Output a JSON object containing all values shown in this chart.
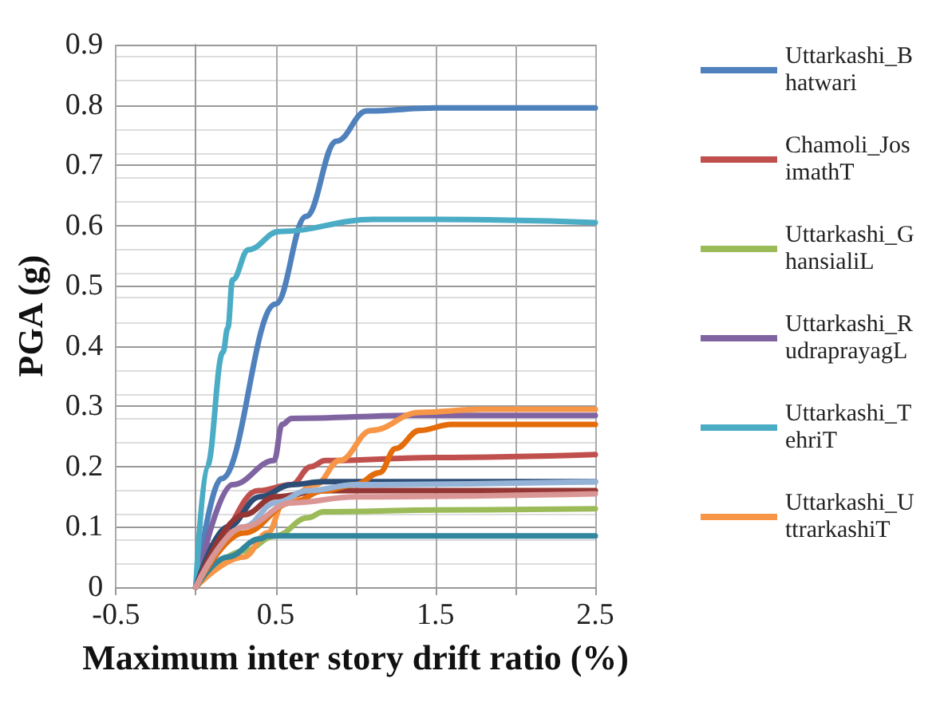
{
  "chart_data": {
    "type": "line",
    "xlabel": "Maximum inter story drift ratio (%)",
    "ylabel": "PGA (g)",
    "xlim": [
      -0.5,
      2.5
    ],
    "xticks": [
      -0.5,
      {
        "value": 0,
        "label": null
      },
      0.5,
      {
        "value": 1,
        "label": null
      },
      1.5,
      {
        "value": 2,
        "label": null
      },
      2.5
    ],
    "ylim": [
      0,
      0.9
    ],
    "yticks": [
      0,
      0.1,
      0.2,
      0.3,
      0.4,
      0.5,
      0.6,
      0.7,
      0.8,
      0.9
    ],
    "grid": true,
    "legend": "right",
    "marker": "none",
    "line_style": "solid",
    "series": [
      {
        "name": "Uttarkashi_Bhatwari",
        "color": "#4f81bd",
        "x": [
          0,
          0.16,
          0.5,
          0.69,
          0.88,
          1.07,
          1.5,
          2.5
        ],
        "values": [
          0,
          0.18,
          0.47,
          0.615,
          0.74,
          0.79,
          0.795,
          0.795
        ]
      },
      {
        "name": "Chamoli_JosimathT",
        "color": "#c0504d",
        "x": [
          0,
          0.1,
          0.39,
          0.6,
          0.72,
          0.81,
          1.5,
          2.5
        ],
        "values": [
          0,
          0.07,
          0.16,
          0.17,
          0.2,
          0.21,
          0.215,
          0.22
        ]
      },
      {
        "name": "Uttarkashi_GhansialiL",
        "color": "#9bbb59",
        "x": [
          0,
          0.3,
          0.5,
          0.7,
          0.8,
          1.5,
          2.5
        ],
        "values": [
          0,
          0.06,
          0.085,
          0.115,
          0.125,
          0.128,
          0.13
        ]
      },
      {
        "name": "Uttarkashi_RudraprayagL",
        "color": "#8064a2",
        "x": [
          0,
          0.23,
          0.49,
          0.54,
          0.6,
          1.38,
          2.5
        ],
        "values": [
          0,
          0.17,
          0.21,
          0.27,
          0.28,
          0.285,
          0.285
        ]
      },
      {
        "name": "Uttarkashi_TehriT",
        "color": "#4bacc6",
        "x": [
          0,
          0.07,
          0.17,
          0.2,
          0.23,
          0.33,
          0.52,
          1.11,
          1.5,
          2.5
        ],
        "values": [
          0,
          0.2,
          0.39,
          0.43,
          0.51,
          0.56,
          0.59,
          0.61,
          0.61,
          0.605
        ]
      },
      {
        "name": "Uttarkashi_UttrarkashiT",
        "color": "#f79646",
        "x": [
          0,
          0.3,
          0.45,
          0.55,
          0.75,
          0.9,
          1.1,
          1.4,
          1.8,
          2.5
        ],
        "values": [
          0,
          0.05,
          0.09,
          0.14,
          0.17,
          0.21,
          0.26,
          0.29,
          0.295,
          0.295
        ]
      },
      {
        "color": "#2c4d75",
        "x": [
          0,
          0.2,
          0.4,
          0.6,
          0.8,
          2.5
        ],
        "values": [
          0,
          0.1,
          0.15,
          0.17,
          0.175,
          0.175
        ]
      },
      {
        "color": "#943634",
        "x": [
          0,
          0.3,
          0.5,
          0.8,
          2.5
        ],
        "values": [
          0,
          0.12,
          0.15,
          0.16,
          0.16
        ]
      },
      {
        "color": "#31859c",
        "x": [
          0,
          0.2,
          0.4,
          0.45,
          2.5
        ],
        "values": [
          0,
          0.05,
          0.08,
          0.085,
          0.085
        ]
      },
      {
        "color": "#e46c0a",
        "x": [
          0,
          0.3,
          0.6,
          0.8,
          1.0,
          1.15,
          1.25,
          1.4,
          1.6,
          2.5
        ],
        "values": [
          0,
          0.09,
          0.14,
          0.16,
          0.17,
          0.19,
          0.23,
          0.26,
          0.27,
          0.27
        ]
      },
      {
        "color": "#95b3d7",
        "x": [
          0,
          0.3,
          0.5,
          0.7,
          1.0,
          2.5
        ],
        "values": [
          0,
          0.1,
          0.14,
          0.16,
          0.17,
          0.175
        ]
      },
      {
        "color": "#d99694",
        "x": [
          0,
          0.3,
          0.6,
          1.0,
          2.5
        ],
        "values": [
          0,
          0.1,
          0.14,
          0.15,
          0.155
        ]
      }
    ]
  }
}
